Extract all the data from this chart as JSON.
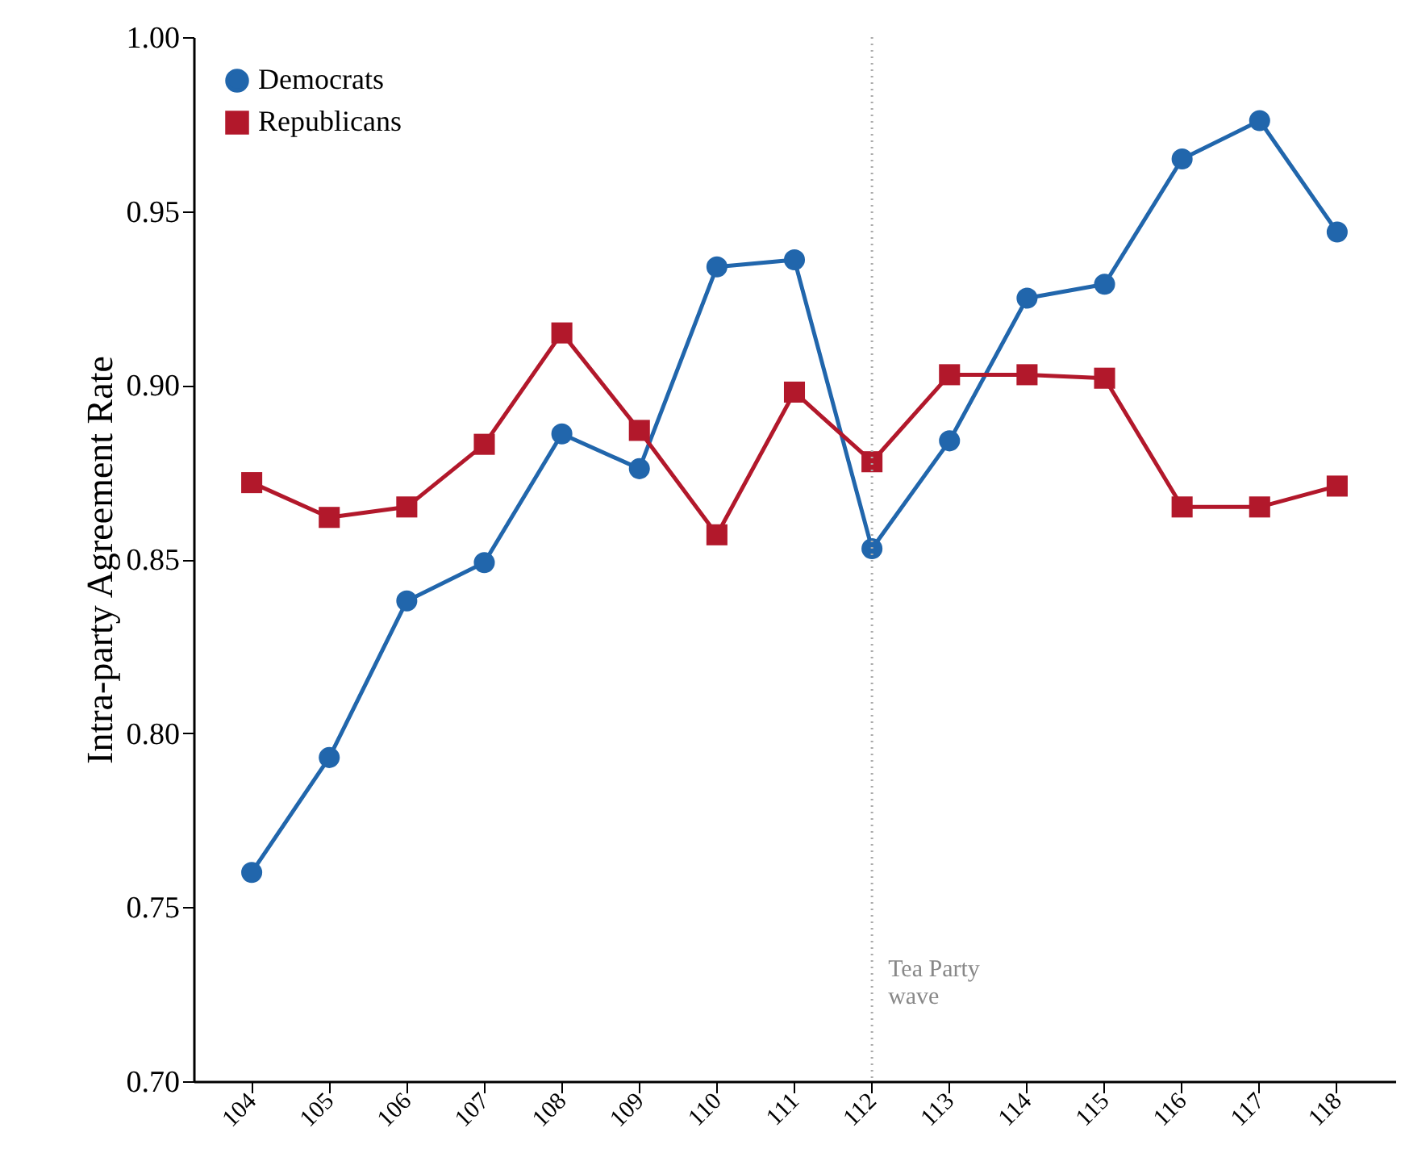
{
  "chart_data": {
    "type": "line",
    "ylabel": "Intra-party Agreement Rate",
    "categories": [
      "104",
      "105",
      "106",
      "107",
      "108",
      "109",
      "110",
      "111",
      "112",
      "113",
      "114",
      "115",
      "116",
      "117",
      "118"
    ],
    "series": [
      {
        "name": "Democrats",
        "color": "#2166ac",
        "marker": "circle",
        "values": [
          0.76,
          0.793,
          0.838,
          0.849,
          0.886,
          0.876,
          0.934,
          0.936,
          0.853,
          0.884,
          0.925,
          0.929,
          0.965,
          0.976,
          0.944
        ]
      },
      {
        "name": "Republicans",
        "color": "#b2182b",
        "marker": "square",
        "values": [
          0.872,
          0.862,
          0.865,
          0.883,
          0.915,
          0.887,
          0.857,
          0.898,
          0.878,
          0.903,
          0.903,
          0.902,
          0.865,
          0.865,
          0.871
        ]
      }
    ],
    "ylim": [
      0.7,
      1.0
    ],
    "yticks": [
      {
        "value": 0.7,
        "label": "0.70"
      },
      {
        "value": 0.75,
        "label": "0.75"
      },
      {
        "value": 0.8,
        "label": "0.80"
      },
      {
        "value": 0.85,
        "label": "0.85"
      },
      {
        "value": 0.9,
        "label": "0.90"
      },
      {
        "value": 0.95,
        "label": "0.95"
      },
      {
        "value": 1.0,
        "label": "1.00"
      }
    ],
    "ref_lines": [
      {
        "axis": "x",
        "value": "112",
        "label": "Tea Party\nwave",
        "color": "#aaaaaa",
        "line_style": "dotted"
      }
    ],
    "grid": false,
    "legend": "top left",
    "line_style": "solid"
  }
}
